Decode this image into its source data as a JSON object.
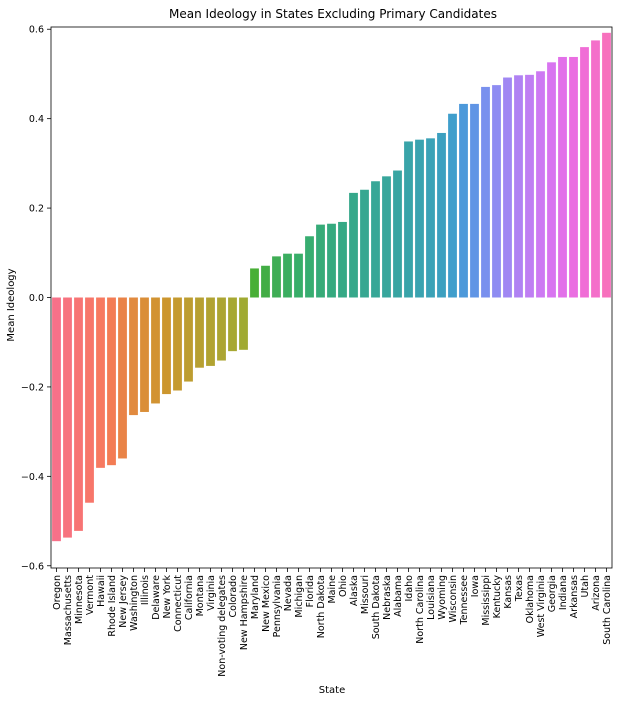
{
  "chart_data": {
    "type": "bar",
    "title": "Mean Ideology in States Excluding Primary Candidates",
    "xlabel": "State",
    "ylabel": "Mean Ideology",
    "ylim": [
      -0.605,
      0.605
    ],
    "yticks": [
      "0.6",
      "0.4",
      "0.2",
      "0.0",
      "−0.2",
      "−0.4",
      "−0.6"
    ],
    "ytick_values": [
      0.6,
      0.4,
      0.2,
      0.0,
      -0.2,
      -0.4,
      -0.6
    ],
    "grid": false,
    "categories": [
      "Oregon",
      "Massachusetts",
      "Minnesota",
      "Vermont",
      "Hawaii",
      "Rhode Island",
      "New Jersey",
      "Washington",
      "Illinois",
      "Delaware",
      "New York",
      "Connecticut",
      "California",
      "Montana",
      "Virginia",
      "Non-voting delegates",
      "Colorado",
      "New Hampshire",
      "Maryland",
      "New Mexico",
      "Pennsylvania",
      "Nevada",
      "Michigan",
      "Florida",
      "North Dakota",
      "Maine",
      "Ohio",
      "Alaska",
      "Missouri",
      "South Dakota",
      "Nebraska",
      "Alabama",
      "Idaho",
      "North Carolina",
      "Louisiana",
      "Wyoming",
      "Wisconsin",
      "Tennessee",
      "Iowa",
      "Mississippi",
      "Kentucky",
      "Kansas",
      "Texas",
      "Oklahoma",
      "West Virginia",
      "Georgia",
      "Indiana",
      "Arkansas",
      "Utah",
      "Arizona",
      "South Carolina"
    ],
    "values": [
      -0.545,
      -0.537,
      -0.522,
      -0.459,
      -0.381,
      -0.375,
      -0.36,
      -0.263,
      -0.256,
      -0.237,
      -0.216,
      -0.208,
      -0.188,
      -0.157,
      -0.153,
      -0.141,
      -0.12,
      -0.117,
      0.065,
      0.071,
      0.092,
      0.098,
      0.098,
      0.137,
      0.163,
      0.165,
      0.169,
      0.234,
      0.241,
      0.26,
      0.271,
      0.284,
      0.349,
      0.353,
      0.356,
      0.368,
      0.411,
      0.433,
      0.433,
      0.471,
      0.475,
      0.492,
      0.497,
      0.498,
      0.506,
      0.526,
      0.538,
      0.538,
      0.56,
      0.575,
      0.592
    ],
    "colors": [
      "#f77189",
      "#f7737f",
      "#f77474",
      "#f7766a",
      "#f77960",
      "#f37c54",
      "#e98347",
      "#e18a3f",
      "#da8e38",
      "#d29332",
      "#cc962e",
      "#c59a2f",
      "#bd9d30",
      "#b7a031",
      "#b1a331",
      "#aca532",
      "#a7a832",
      "#a0aa32",
      "#48af36",
      "#42ad45",
      "#3fad55",
      "#3bae60",
      "#38ae69",
      "#37ad70",
      "#36ab78",
      "#35aa7f",
      "#35a985",
      "#36a88b",
      "#37a791",
      "#37a797",
      "#38a69c",
      "#38a5a2",
      "#39a4a9",
      "#3aa3b0",
      "#3ba2b7",
      "#3ca0c0",
      "#3f9ecc",
      "#4c99da",
      "#6095e5",
      "#7990ee",
      "#8e8cf2",
      "#a087f3",
      "#b082f3",
      "#bf7ef3",
      "#cd79f3",
      "#d874f0",
      "#e270e9",
      "#ea6ee1",
      "#f06dd6",
      "#f46fca",
      "#f771bd"
    ]
  }
}
